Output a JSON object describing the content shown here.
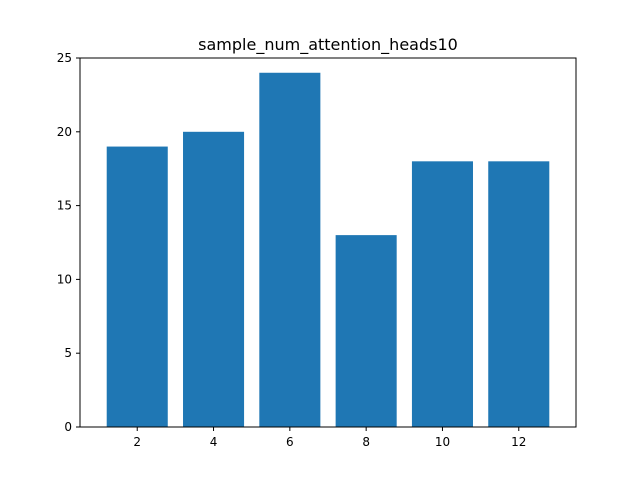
{
  "chart_data": {
    "type": "bar",
    "title": "sample_num_attention_heads10",
    "xlabel": "",
    "ylabel": "",
    "categories": [
      2,
      4,
      6,
      8,
      10,
      12
    ],
    "values": [
      19,
      20,
      24,
      13,
      18,
      18
    ],
    "xlim": [
      0.5,
      13.5
    ],
    "ylim": [
      0,
      25
    ],
    "yticks": [
      0,
      5,
      10,
      15,
      20,
      25
    ],
    "xticks": [
      2,
      4,
      6,
      8,
      10,
      12
    ],
    "bar_width": 1.6,
    "bar_color": "#1f77b4",
    "grid": false,
    "legend": "none"
  }
}
